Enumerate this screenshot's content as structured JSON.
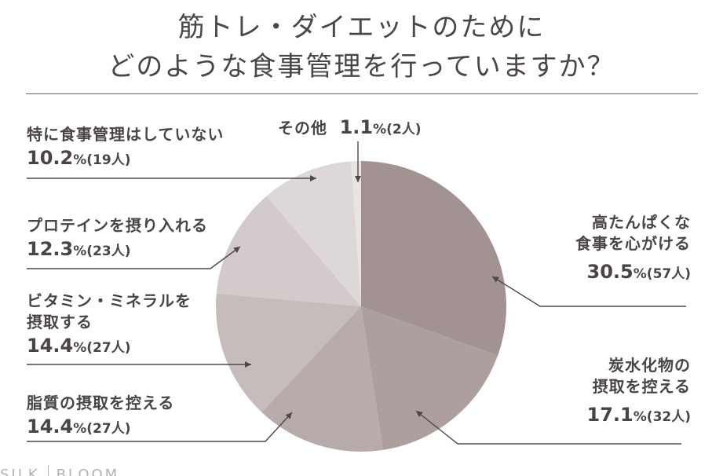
{
  "header": {
    "title_line1": "筋トレ・ダイエットのために",
    "title_line2": "どのような食事管理を行っていますか？"
  },
  "footer": {
    "brand_left": "SILK",
    "brand_right": "BLOOM"
  },
  "chart_data": {
    "type": "pie",
    "start": "12 o'clock, clockwise",
    "slices": [
      {
        "label": "高たんぱくな食事を心がける",
        "pct": "30.5",
        "count": "(57人)",
        "value": 30.5,
        "color": "#a39292"
      },
      {
        "label": "炭水化物の摂取を控える",
        "pct": "17.1",
        "count": "(32人)",
        "value": 17.1,
        "color": "#ae9f9f"
      },
      {
        "label": "脂質の摂取を控える",
        "pct": "14.4",
        "count": "(27人)",
        "value": 14.4,
        "color": "#b8abab"
      },
      {
        "label": "ビタミン・ミネラルを摂取する",
        "pct": "14.4",
        "count": "(27人)",
        "value": 14.4,
        "color": "#c6bcbc"
      },
      {
        "label": "プロテインを摂り入れる",
        "pct": "12.3",
        "count": "(23人)",
        "value": 12.3,
        "color": "#d3cbcb"
      },
      {
        "label": "特に食事管理はしていない",
        "pct": "10.2",
        "count": "(19人)",
        "value": 10.2,
        "color": "#ddd7d7"
      },
      {
        "label": "その他",
        "pct": "1.1",
        "count": "(2人)",
        "value": 1.1,
        "color": "#e8e4e4"
      }
    ],
    "label_lines": {
      "highprotein": [
        "高たんぱくな",
        "食事を心がける"
      ],
      "carb": [
        "炭水化物の",
        "摂取を控える"
      ],
      "fat": [
        "脂質の摂取を控える"
      ],
      "vitamin": [
        "ビタミン・ミネラルを",
        "摂取する"
      ],
      "protein": [
        "プロテインを摂り入れる"
      ],
      "none": [
        "特に食事管理はしていない"
      ],
      "other": [
        "その他"
      ]
    },
    "percent_sign": "%"
  }
}
